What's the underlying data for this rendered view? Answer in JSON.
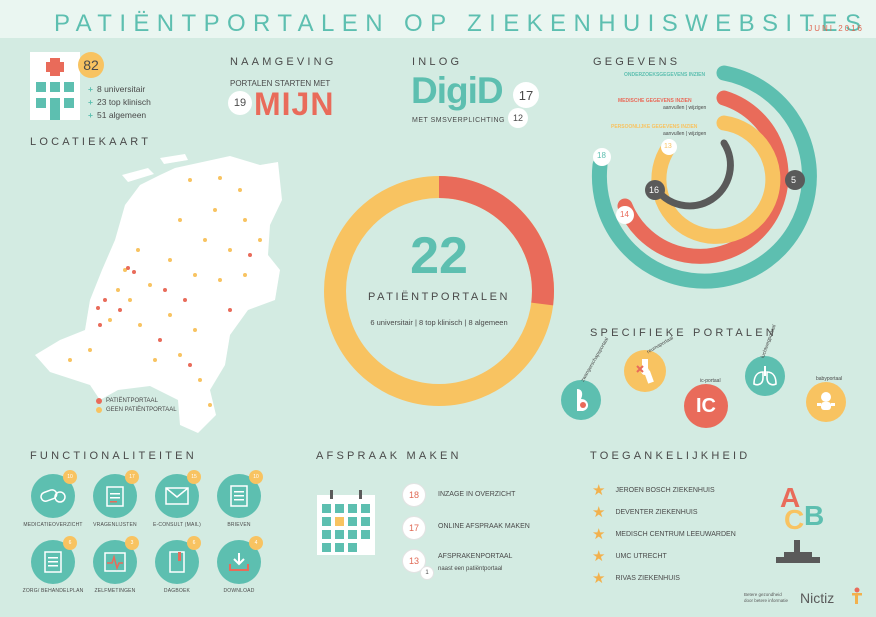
{
  "header": {
    "title": "PATIËNTPORTALEN OP ZIEKENHUISWEBSITES",
    "date": "JUNI 2016"
  },
  "overview": {
    "total": "82",
    "lines": [
      {
        "count": "8",
        "label": "universitair"
      },
      {
        "count": "23",
        "label": "top klinisch"
      },
      {
        "count": "51",
        "label": "algemeen"
      }
    ]
  },
  "naamgeving": {
    "title": "NAAMGEVING",
    "subtitle": "PORTALEN STARTEN MET",
    "count": "19",
    "word": "MIJN"
  },
  "inlog": {
    "title": "INLOG",
    "logo": "DigiD",
    "count": "17",
    "sms_label": "MET SMSVERPLICHTING",
    "sms_count": "12"
  },
  "gegevens": {
    "title": "GEGEVENS",
    "rings": [
      {
        "label": "ONDERZOEKSGEGEVENS INZIEN",
        "sublabel": "",
        "value": "18",
        "color": "#5dbfb0"
      },
      {
        "label": "MEDISCHE GEGEVENS INZIEN",
        "sublabel": "aanvullen | wijzigen",
        "value": "14",
        "color": "#e96b5a"
      },
      {
        "label": "PERSOONLIJKE GEGEVENS INZIEN",
        "sublabel": "aanvullen | wijzigen",
        "value": "13",
        "color": "#f8c361"
      },
      {
        "label": "",
        "sublabel": "",
        "value": "16",
        "color": "#5a5a5a"
      }
    ],
    "extra_value": "5"
  },
  "locatiekaart": {
    "title": "LOCATIEKAART",
    "legend": [
      {
        "label": "PATIËNTPORTAAL",
        "color": "#e96b5a"
      },
      {
        "label": "GEEN PATIËNTPORTAAL",
        "color": "#f8c361"
      }
    ]
  },
  "donut": {
    "value": "22",
    "label": "PATIËNTPORTALEN",
    "breakdown": "6 universitair | 8 top klinisch | 8 algemeen",
    "portal_share": 0.27,
    "colors": {
      "portal": "#e96b5a",
      "rest": "#f8c361"
    }
  },
  "specifiek": {
    "title": "SPECIFIEKE PORTALEN",
    "items": [
      {
        "label": "zwangerschapsportaal",
        "icon": "pregnancy-icon",
        "color": "#5dbfb0"
      },
      {
        "label": "reumaportaal",
        "icon": "joint-icon",
        "color": "#f8c361"
      },
      {
        "label": "ic-portaal",
        "icon": "ic-icon",
        "color": "#e96b5a",
        "text": "IC"
      },
      {
        "label": "luchtwegportaal",
        "icon": "lungs-icon",
        "color": "#5dbfb0"
      },
      {
        "label": "babyportaal",
        "icon": "baby-icon",
        "color": "#f8c361"
      }
    ]
  },
  "functionaliteiten": {
    "title": "FUNCTIONALITEITEN",
    "items": [
      {
        "label": "MEDICATIEOVERZICHT",
        "count": "10",
        "icon": "pills-icon"
      },
      {
        "label": "VRAGENLIJSTEN",
        "count": "17",
        "icon": "clipboard-icon"
      },
      {
        "label": "E-CONSULT (MAIL)",
        "count": "15",
        "icon": "mail-icon"
      },
      {
        "label": "BRIEVEN",
        "count": "10",
        "icon": "letter-icon"
      },
      {
        "label": "ZORG/ BEHANDELPLAN",
        "count": "6",
        "icon": "plan-icon"
      },
      {
        "label": "ZELFMETINGEN",
        "count": "3",
        "icon": "measure-icon"
      },
      {
        "label": "DAGBOEK",
        "count": "6",
        "icon": "diary-icon"
      },
      {
        "label": "DOWNLOAD",
        "count": "4",
        "icon": "download-icon"
      }
    ]
  },
  "afspraak": {
    "title": "AFSPRAAK MAKEN",
    "items": [
      {
        "count": "18",
        "label": "INZAGE IN OVERZICHT",
        "extra": "",
        "extra_count": ""
      },
      {
        "count": "17",
        "label": "ONLINE AFSPRAAK MAKEN",
        "extra": "",
        "extra_count": ""
      },
      {
        "count": "13",
        "label": "AFSPRAKENPORTAAL",
        "extra": "naast een patiëntportaal",
        "extra_count": "1"
      }
    ]
  },
  "toegankelijkheid": {
    "title": "TOEGANKELIJKHEID",
    "items": [
      "JEROEN BOSCH ZIEKENHUIS",
      "DEVENTER ZIEKENHUIS",
      "MEDISCH CENTRUM LEEUWARDEN",
      "UMC UTRECHT",
      "RIVAS ZIEKENHUIS"
    ],
    "blocks": [
      "A",
      "C",
      "B"
    ]
  },
  "footer": {
    "tagline1": "Betere gezondheid",
    "tagline2": "door betere informatie",
    "brand": "Nictiz"
  }
}
